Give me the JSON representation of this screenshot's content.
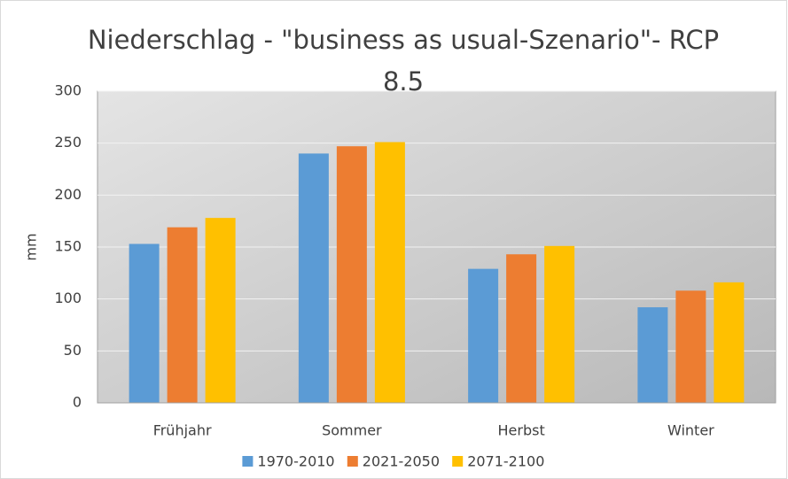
{
  "chart_data": {
    "type": "bar",
    "title": "Niederschlag - \"business as usual-Szenario\"- RCP 8.5",
    "y_label": "mm",
    "categories": [
      "Frühjahr",
      "Sommer",
      "Herbst",
      "Winter"
    ],
    "series": [
      {
        "name": "1970-2010",
        "color": "#5b9bd5",
        "values": [
          153,
          240,
          129,
          92
        ]
      },
      {
        "name": "2021-2050",
        "color": "#ed7d31",
        "values": [
          169,
          247,
          143,
          108
        ]
      },
      {
        "name": "2071-2100",
        "color": "#ffc000",
        "values": [
          178,
          251,
          151,
          116
        ]
      }
    ],
    "ylim": [
      0,
      300
    ],
    "yticks": [
      0,
      50,
      100,
      150,
      200,
      250,
      300
    ],
    "grid": true,
    "legend": "bottom"
  }
}
